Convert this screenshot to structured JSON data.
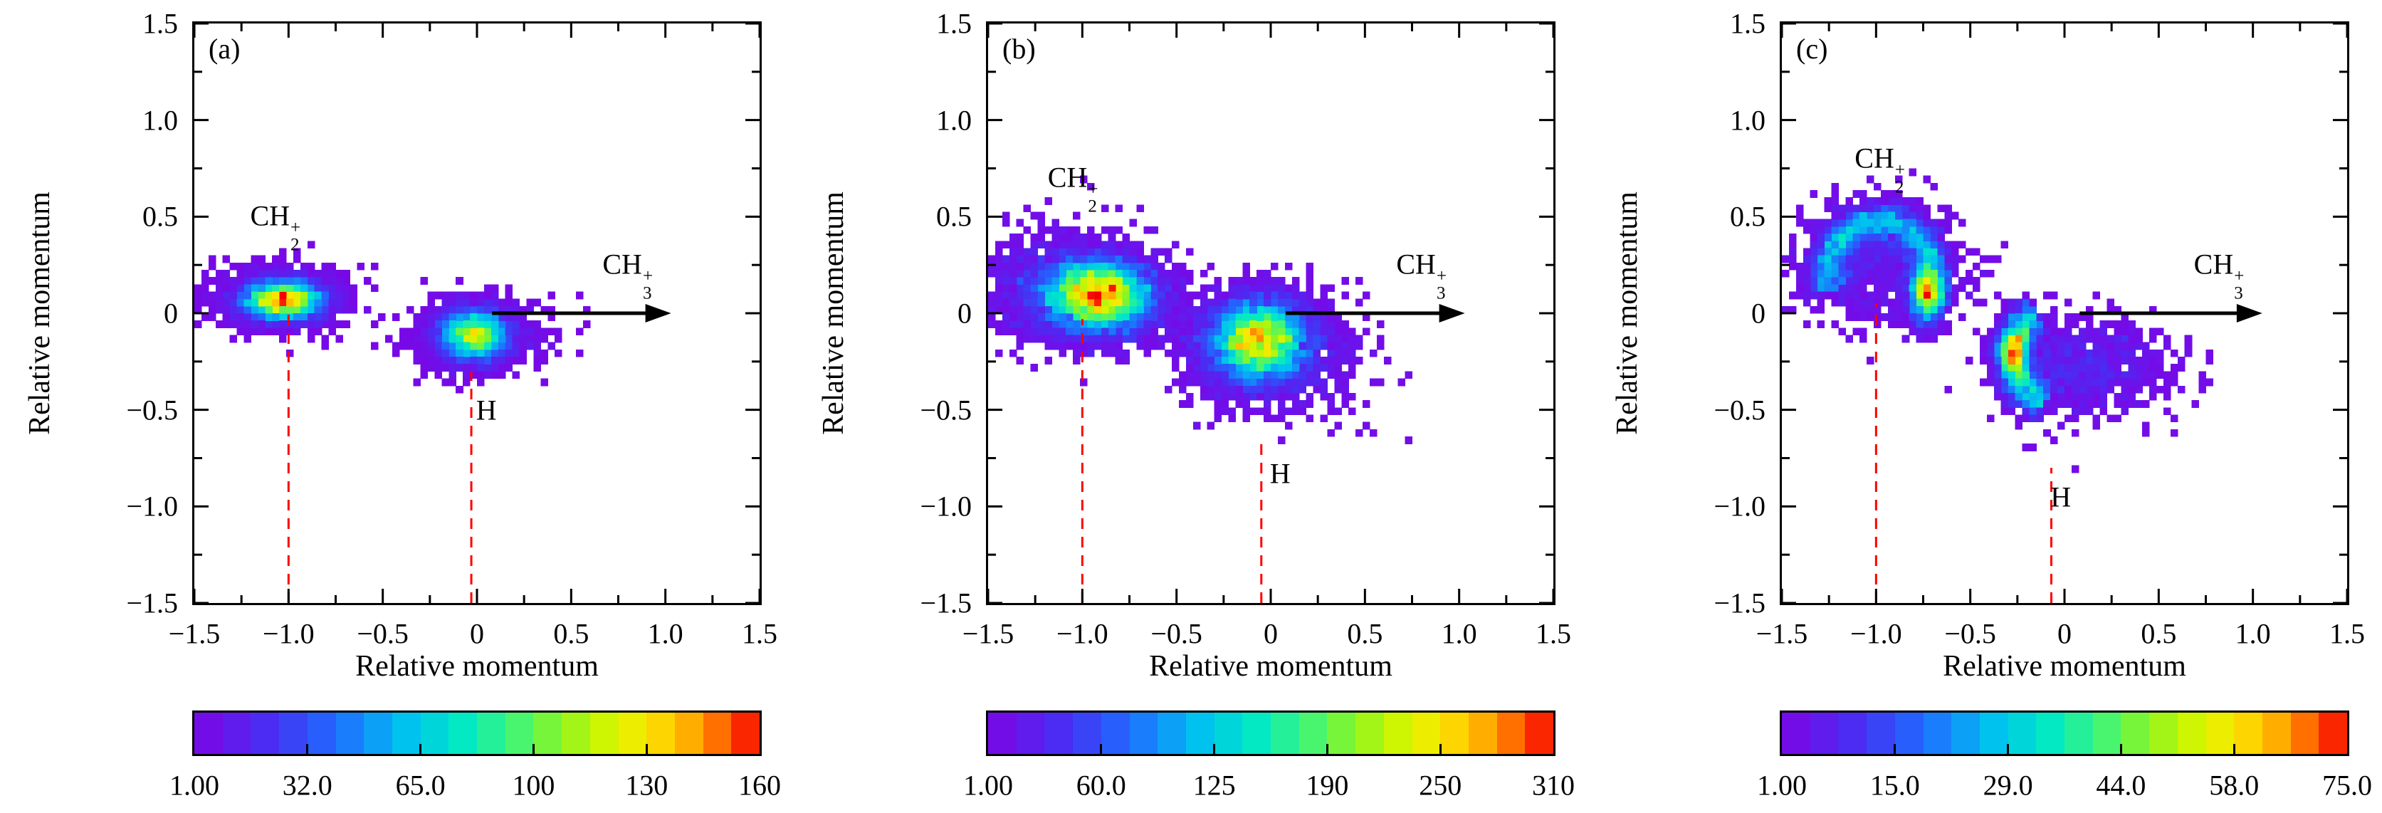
{
  "figure": {
    "background": "#ffffff",
    "axis_color": "#000000",
    "dashed_line_color": "#ff0000",
    "arrow_color": "#000000",
    "x_label": "Relative momentum",
    "y_label": "Relative momentum",
    "xlim": [
      -1.5,
      1.5
    ],
    "ylim": [
      -1.5,
      1.5
    ],
    "tick_values": [
      -1.5,
      -1.0,
      -0.5,
      0,
      0.5,
      1.0,
      1.5
    ],
    "tick_labels": [
      "−1.5",
      "−1.0",
      "−0.5",
      "0",
      "0.5",
      "1.0",
      "1.5"
    ],
    "minor_tick_step": 0.25,
    "cell_size": 0.0375,
    "colorbar_segments": 20,
    "colormap_stops": [
      [
        0.0,
        "#7d05e6"
      ],
      [
        0.13,
        "#4a2cf2"
      ],
      [
        0.25,
        "#1f6bff"
      ],
      [
        0.37,
        "#00c0f0"
      ],
      [
        0.47,
        "#00e8c8"
      ],
      [
        0.56,
        "#3cf57d"
      ],
      [
        0.65,
        "#8cf520"
      ],
      [
        0.73,
        "#d2f500"
      ],
      [
        0.8,
        "#fce800"
      ],
      [
        0.87,
        "#ffb400"
      ],
      [
        0.93,
        "#ff6a00"
      ],
      [
        1.0,
        "#f50000"
      ]
    ]
  },
  "chart_data": [
    {
      "type": "heatmap",
      "panel_label": "(a)",
      "seed": 11,
      "xlabel": "Relative momentum",
      "ylabel": "Relative momentum",
      "colorbar": {
        "min": 1.0,
        "max": 160,
        "tick_labels": [
          "1.00",
          "32.0",
          "65.0",
          "100",
          "130",
          "160"
        ]
      },
      "annotations": {
        "ch2": {
          "prefix": "CH",
          "sub": "2",
          "sup": "+",
          "x": -1.07,
          "y": 0.45
        },
        "ch3": {
          "prefix": "CH",
          "sub": "3",
          "sup": "+",
          "x": 0.8,
          "y": 0.2
        },
        "h": {
          "text": "H",
          "x": 0.05,
          "y": -0.5
        }
      },
      "arrow": {
        "x1": 0.08,
        "y1": 0.0,
        "x2": 1.03,
        "y2": 0.0
      },
      "dashed_lines": [
        {
          "x": -1.0,
          "y1": -1.5,
          "y2": 0.0
        },
        {
          "x": -0.03,
          "y1": -1.5,
          "y2": -0.3
        }
      ],
      "clusters": [
        {
          "type": "gauss",
          "cx": -1.03,
          "cy": 0.07,
          "sx": 0.115,
          "sy": 0.055,
          "n": 5200
        },
        {
          "type": "gauss",
          "cx": -1.07,
          "cy": 0.09,
          "sx": 0.19,
          "sy": 0.09,
          "n": 420
        },
        {
          "type": "gauss",
          "cx": -0.02,
          "cy": -0.11,
          "sx": 0.1,
          "sy": 0.072,
          "n": 4300
        },
        {
          "type": "gauss",
          "cx": 0.04,
          "cy": -0.12,
          "sx": 0.2,
          "sy": 0.1,
          "n": 420
        }
      ]
    },
    {
      "type": "heatmap",
      "panel_label": "(b)",
      "seed": 22,
      "xlabel": "Relative momentum",
      "ylabel": "Relative momentum",
      "colorbar": {
        "min": 1.0,
        "max": 310,
        "tick_labels": [
          "1.00",
          "60.0",
          "125",
          "190",
          "250",
          "310"
        ]
      },
      "annotations": {
        "ch2": {
          "prefix": "CH",
          "sub": "2",
          "sup": "+",
          "x": -1.05,
          "y": 0.65
        },
        "ch3": {
          "prefix": "CH",
          "sub": "3",
          "sup": "+",
          "x": 0.8,
          "y": 0.2
        },
        "h": {
          "text": "H",
          "x": 0.05,
          "y": -0.83
        }
      },
      "arrow": {
        "x1": 0.08,
        "y1": 0.0,
        "x2": 1.03,
        "y2": 0.0
      },
      "dashed_lines": [
        {
          "x": -1.0,
          "y1": -1.5,
          "y2": -0.03
        },
        {
          "x": -0.05,
          "y1": -1.5,
          "y2": -0.65
        }
      ],
      "clusters": [
        {
          "type": "gauss",
          "cx": -0.92,
          "cy": 0.09,
          "sx": 0.16,
          "sy": 0.1,
          "n": 6200
        },
        {
          "type": "gauss",
          "cx": -1.08,
          "cy": 0.16,
          "sx": 0.25,
          "sy": 0.15,
          "n": 900
        },
        {
          "type": "gauss",
          "cx": -0.07,
          "cy": -0.14,
          "sx": 0.14,
          "sy": 0.11,
          "n": 5400
        },
        {
          "type": "gauss",
          "cx": 0.02,
          "cy": -0.22,
          "sx": 0.24,
          "sy": 0.16,
          "n": 800
        }
      ]
    },
    {
      "type": "heatmap",
      "panel_label": "(c)",
      "seed": 33,
      "xlabel": "Relative momentum",
      "ylabel": "Relative momentum",
      "colorbar": {
        "min": 1.0,
        "max": 75,
        "tick_labels": [
          "1.00",
          "15.0",
          "29.0",
          "44.0",
          "58.0",
          "75.0"
        ]
      },
      "annotations": {
        "ch2": {
          "prefix": "CH",
          "sub": "2",
          "sup": "+",
          "x": -0.98,
          "y": 0.75
        },
        "ch3": {
          "prefix": "CH",
          "sub": "3",
          "sup": "+",
          "x": 0.82,
          "y": 0.2
        },
        "h": {
          "text": "H",
          "x": -0.02,
          "y": -0.95
        }
      },
      "arrow": {
        "x1": 0.08,
        "y1": 0.0,
        "x2": 1.05,
        "y2": 0.0
      },
      "dashed_lines": [
        {
          "x": -1.0,
          "y1": -1.5,
          "y2": 0.05
        },
        {
          "x": -0.07,
          "y1": -1.5,
          "y2": -0.8
        }
      ],
      "clusters": [
        {
          "type": "arc",
          "cx": -0.978,
          "cy": 0.199,
          "r": 0.284,
          "a1": -25,
          "a2": 196,
          "sr": 0.05,
          "n": 3200
        },
        {
          "type": "gauss",
          "cx": -0.73,
          "cy": 0.1,
          "sx": 0.05,
          "sy": 0.08,
          "n": 1500
        },
        {
          "type": "gauss",
          "cx": -1.02,
          "cy": 0.26,
          "sx": 0.23,
          "sy": 0.16,
          "n": 750
        },
        {
          "type": "arc",
          "cx": -0.02,
          "cy": -0.22,
          "r": 0.26,
          "a1": 120,
          "a2": 250,
          "sr": 0.05,
          "n": 2000
        },
        {
          "type": "gauss",
          "cx": -0.27,
          "cy": -0.2,
          "sx": 0.045,
          "sy": 0.07,
          "n": 1100
        },
        {
          "type": "gauss",
          "cx": 0.1,
          "cy": -0.28,
          "sx": 0.22,
          "sy": 0.13,
          "n": 900
        }
      ]
    }
  ]
}
